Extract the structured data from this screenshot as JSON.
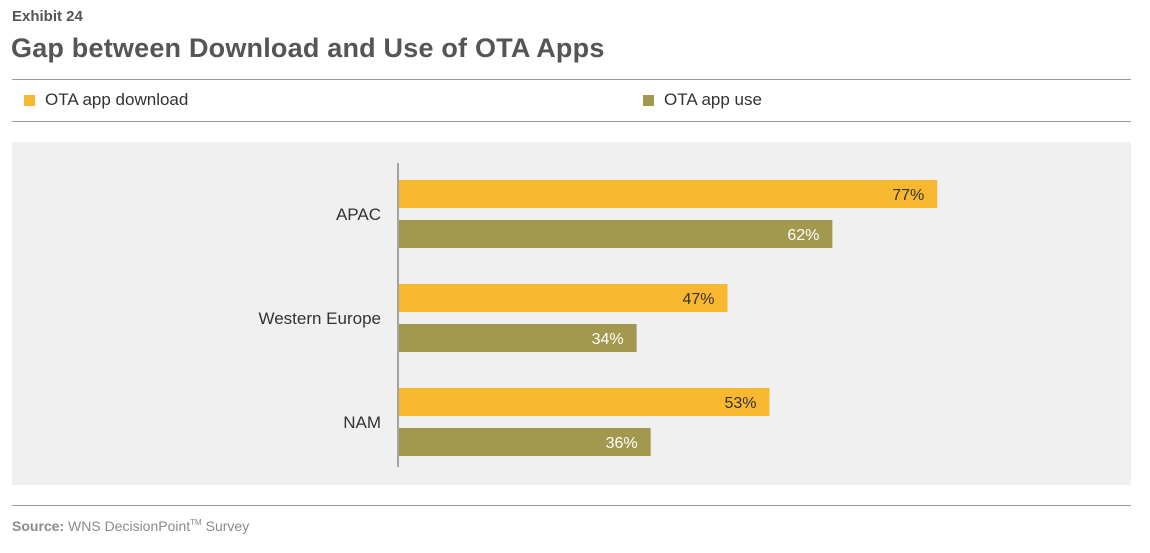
{
  "header": {
    "exhibit": "Exhibit 24",
    "title": "Gap between Download and Use of OTA Apps"
  },
  "legend": [
    {
      "label": "OTA app download",
      "color": "#F7B731"
    },
    {
      "label": "OTA app use",
      "color": "#A3994E"
    }
  ],
  "chart_data": {
    "type": "bar",
    "orientation": "horizontal",
    "categories": [
      "APAC",
      "Western Europe",
      "NAM"
    ],
    "series": [
      {
        "name": "OTA app download",
        "values": [
          77,
          47,
          53
        ],
        "labels": [
          "77%",
          "47%",
          "53%"
        ],
        "color": "#F7B731"
      },
      {
        "name": "OTA app use",
        "values": [
          62,
          34,
          36
        ],
        "labels": [
          "62%",
          "34%",
          "36%"
        ],
        "color": "#A3994E"
      }
    ],
    "unit": "%",
    "xlim": [
      0,
      100
    ],
    "grid": false,
    "legend_position": "top"
  },
  "footer": {
    "source_label": "Source:",
    "source_text": "WNS DecisionPoint",
    "source_sup": "TM",
    "source_suffix": " Survey"
  }
}
